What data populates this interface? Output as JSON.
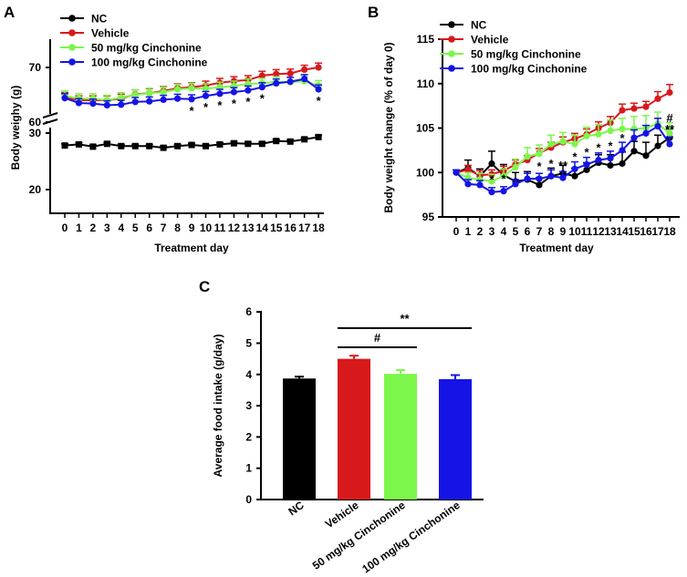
{
  "figure": {
    "panel_labels": [
      "A",
      "B",
      "C"
    ]
  },
  "colors": {
    "NC": "#000000",
    "Vehicle": "#d7191c",
    "50": "#7cf64a",
    "100": "#1414e6"
  },
  "chart_data": [
    {
      "type": "line",
      "panel": "A",
      "title": "",
      "xlabel": "Treatment day",
      "ylabel": "Body weighy (g)",
      "x": [
        0,
        1,
        2,
        3,
        4,
        5,
        6,
        7,
        8,
        9,
        10,
        11,
        12,
        13,
        14,
        15,
        16,
        17,
        18
      ],
      "axis_break": {
        "lower": [
          15,
          30
        ],
        "upper": [
          60,
          75
        ]
      },
      "yticks_lower": [
        "20",
        "30"
      ],
      "yticks_upper": [
        "60",
        "70"
      ],
      "legend": [
        "NC",
        "Vehicle",
        "50 mg/kg Cinchonine",
        "100 mg/kg Cinchonine"
      ],
      "legend_position": "top-left",
      "series": [
        {
          "name": "NC",
          "color": "#000000",
          "values": [
            27.8,
            28.0,
            27.6,
            28.1,
            27.7,
            27.7,
            27.7,
            27.4,
            27.7,
            27.9,
            27.7,
            28.0,
            28.2,
            28.1,
            28.1,
            28.6,
            28.5,
            28.9,
            29.3
          ],
          "errors": [
            0.3,
            0.3,
            0.3,
            0.3,
            0.3,
            0.3,
            0.3,
            0.3,
            0.3,
            0.3,
            0.3,
            0.3,
            0.3,
            0.3,
            0.3,
            0.3,
            0.3,
            0.3,
            0.3
          ]
        },
        {
          "name": "Vehicle",
          "color": "#d7191c",
          "values": [
            64.6,
            64.0,
            64.0,
            64.0,
            64.3,
            65.1,
            65.3,
            65.7,
            66.2,
            66.4,
            66.7,
            67.2,
            67.5,
            67.7,
            68.5,
            68.8,
            68.9,
            69.6,
            70.0
          ],
          "errors": [
            0.8,
            0.8,
            0.8,
            0.8,
            0.8,
            0.8,
            0.8,
            0.8,
            0.8,
            0.8,
            0.8,
            0.8,
            0.8,
            0.8,
            0.8,
            0.8,
            0.8,
            0.8,
            0.8
          ]
        },
        {
          "name": "50 mg/kg Cinchonine",
          "color": "#7cf64a",
          "values": [
            64.8,
            64.3,
            64.3,
            64.0,
            64.5,
            65.0,
            65.3,
            65.5,
            66.0,
            66.2,
            66.1,
            66.4,
            66.6,
            67.0,
            67.1,
            67.4,
            67.3,
            67.5,
            66.7
          ],
          "errors": [
            0.9,
            0.9,
            0.9,
            0.9,
            0.9,
            0.9,
            0.9,
            0.9,
            0.9,
            0.9,
            0.9,
            0.9,
            0.9,
            0.9,
            0.9,
            0.9,
            0.9,
            0.9,
            0.9
          ]
        },
        {
          "name": "100 mg/kg Cinchonine",
          "color": "#1414e6",
          "values": [
            64.4,
            63.5,
            63.4,
            63.1,
            63.2,
            63.7,
            63.8,
            64.1,
            64.3,
            64.2,
            64.8,
            65.2,
            65.5,
            65.8,
            66.4,
            67.1,
            67.4,
            67.9,
            66.0
          ],
          "errors": [
            0.8,
            0.8,
            0.8,
            0.8,
            0.8,
            0.8,
            0.8,
            0.8,
            0.8,
            0.8,
            0.8,
            0.8,
            0.8,
            0.8,
            0.8,
            0.8,
            0.8,
            0.8,
            0.8
          ]
        }
      ],
      "annotations": [
        {
          "x": 9,
          "label": "*"
        },
        {
          "x": 10,
          "label": "*"
        },
        {
          "x": 11,
          "label": "*"
        },
        {
          "x": 12,
          "label": "*"
        },
        {
          "x": 13,
          "label": "*"
        },
        {
          "x": 14,
          "label": "*"
        },
        {
          "x": 18,
          "label": "*"
        }
      ]
    },
    {
      "type": "line",
      "panel": "B",
      "title": "",
      "xlabel": "Treatment day",
      "ylabel": "Body weight change (% of day 0)",
      "x": [
        0,
        1,
        2,
        3,
        4,
        5,
        6,
        7,
        8,
        9,
        10,
        11,
        12,
        13,
        14,
        15,
        16,
        17,
        18
      ],
      "ylim": [
        95,
        115
      ],
      "yticks": [
        "95",
        "100",
        "105",
        "110",
        "115"
      ],
      "legend": [
        "NC",
        "Vehicle",
        "50 mg/kg Cinchonine",
        "100 mg/kg Cinchonine"
      ],
      "legend_position": "top-left",
      "series": [
        {
          "name": "NC",
          "color": "#000000",
          "values": [
            100,
            100.5,
            99.6,
            101.0,
            99.7,
            99.0,
            99.2,
            98.6,
            99.6,
            99.9,
            99.6,
            100.3,
            101.1,
            100.8,
            101.0,
            102.4,
            101.9,
            103.0,
            103.9
          ],
          "errors": [
            0.3,
            0.9,
            0.8,
            1.4,
            1.2,
            1.0,
            0.9,
            0.8,
            0.9,
            0.9,
            0.9,
            0.8,
            0.9,
            1.2,
            1.3,
            1.1,
            1.5,
            1.2,
            1.0
          ]
        },
        {
          "name": "Vehicle",
          "color": "#d7191c",
          "values": [
            100,
            100.3,
            99.7,
            99.8,
            100.2,
            100.9,
            101.4,
            102.2,
            102.8,
            103.4,
            103.8,
            104.3,
            105.0,
            105.6,
            107.0,
            107.2,
            107.4,
            108.3,
            109.0
          ],
          "errors": [
            0.3,
            0.5,
            0.5,
            0.5,
            0.5,
            0.5,
            0.5,
            0.5,
            0.6,
            0.6,
            0.6,
            0.6,
            0.7,
            0.7,
            0.7,
            0.6,
            0.6,
            0.8,
            0.9
          ]
        },
        {
          "name": "50 mg/kg Cinchonine",
          "color": "#7cf64a",
          "values": [
            100,
            99.4,
            99.2,
            99.0,
            99.6,
            100.6,
            101.8,
            102.1,
            103.2,
            103.5,
            103.2,
            104.1,
            104.3,
            104.7,
            104.9,
            104.9,
            105.0,
            105.5,
            104.4
          ],
          "errors": [
            0.3,
            0.6,
            0.7,
            0.8,
            0.8,
            0.9,
            1.0,
            1.0,
            1.0,
            1.0,
            1.0,
            1.0,
            1.1,
            1.2,
            1.2,
            1.4,
            1.4,
            1.3,
            1.2
          ]
        },
        {
          "name": "100 mg/kg Cinchonine",
          "color": "#1414e6",
          "values": [
            100,
            98.7,
            98.6,
            97.8,
            97.9,
            98.7,
            99.3,
            99.3,
            99.6,
            99.4,
            100.4,
            100.9,
            101.4,
            101.6,
            102.5,
            103.9,
            104.4,
            105.2,
            103.2
          ],
          "errors": [
            0.3,
            0.5,
            0.5,
            0.5,
            0.5,
            0.5,
            0.6,
            0.6,
            0.7,
            0.7,
            0.8,
            0.8,
            0.8,
            0.8,
            0.9,
            0.9,
            0.9,
            0.9,
            0.8
          ]
        }
      ],
      "annotations": [
        {
          "x": 3,
          "label": "*"
        },
        {
          "x": 4,
          "label": "*"
        },
        {
          "x": 7,
          "label": "*"
        },
        {
          "x": 8,
          "label": "*"
        },
        {
          "x": 9,
          "label": "**"
        },
        {
          "x": 10,
          "label": "*"
        },
        {
          "x": 11,
          "label": "*"
        },
        {
          "x": 12,
          "label": "*"
        },
        {
          "x": 13,
          "label": "*"
        },
        {
          "x": 14,
          "label": "*"
        },
        {
          "x": 18,
          "label": "#"
        },
        {
          "x": 18,
          "label": "**"
        }
      ]
    },
    {
      "type": "bar",
      "panel": "C",
      "title": "",
      "xlabel": "",
      "ylabel": "Average food intake (g/day)",
      "categories": [
        "NC",
        "Vehicle",
        "50 mg/kg Cinchonine",
        "100 mg/kg Cinchonine"
      ],
      "values": [
        3.87,
        4.5,
        4.02,
        3.85
      ],
      "errors": [
        0.06,
        0.1,
        0.12,
        0.13
      ],
      "bar_colors": [
        "#000000",
        "#d7191c",
        "#7cf64a",
        "#1414e6"
      ],
      "ylim": [
        0,
        6
      ],
      "yticks": [
        "0",
        "1",
        "2",
        "3",
        "4",
        "5",
        "6"
      ],
      "significance": [
        {
          "from": "Vehicle",
          "to": "50 mg/kg Cinchonine",
          "label": "#"
        },
        {
          "from": "Vehicle",
          "to": "100 mg/kg Cinchonine",
          "label": "**"
        }
      ]
    }
  ]
}
